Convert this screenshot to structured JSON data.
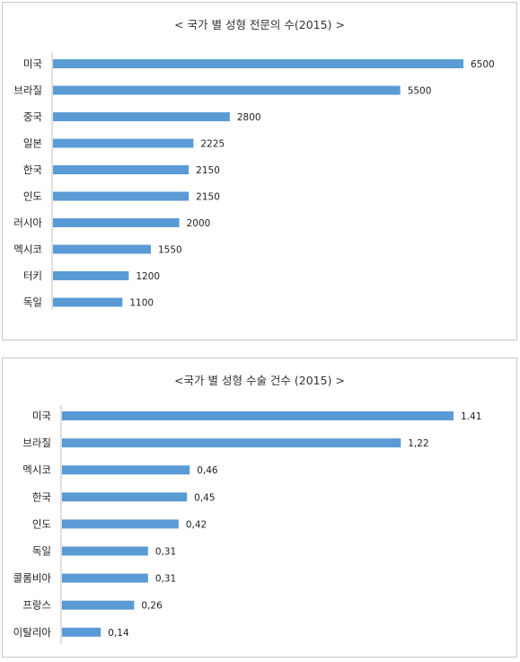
{
  "chart_data": [
    {
      "type": "bar",
      "orientation": "horizontal",
      "title": "< 국가 별 성형 전문의 수(2015) >",
      "categories": [
        "미국",
        "브라질",
        "중국",
        "일본",
        "한국",
        "인도",
        "러시아",
        "멕시코",
        "터키",
        "독일"
      ],
      "values": [
        6500,
        5500,
        2800,
        2225,
        2150,
        2150,
        2000,
        1550,
        1200,
        1100
      ],
      "value_labels": [
        "6500",
        "5500",
        "2800",
        "2225",
        "2150",
        "2150",
        "2000",
        "1550",
        "1200",
        "1100"
      ],
      "xlim": [
        0,
        6500
      ],
      "grid": false,
      "color": "#5b9bd5"
    },
    {
      "type": "bar",
      "orientation": "horizontal",
      "title": "<국가 별 성형 수술 건수 (2015) >",
      "categories": [
        "미국",
        "브라질",
        "멕시코",
        "한국",
        "인도",
        "독일",
        "콜롬비아",
        "프랑스",
        "이탈리아"
      ],
      "values": [
        1.41,
        1.22,
        0.46,
        0.45,
        0.42,
        0.31,
        0.31,
        0.26,
        0.14
      ],
      "value_labels": [
        "1.41",
        "1,22",
        "0,46",
        "0,45",
        "0,42",
        "0,31",
        "0,31",
        "0,26",
        "0,14"
      ],
      "xlim": [
        0,
        1.41
      ],
      "grid": false,
      "color": "#5b9bd5"
    }
  ]
}
